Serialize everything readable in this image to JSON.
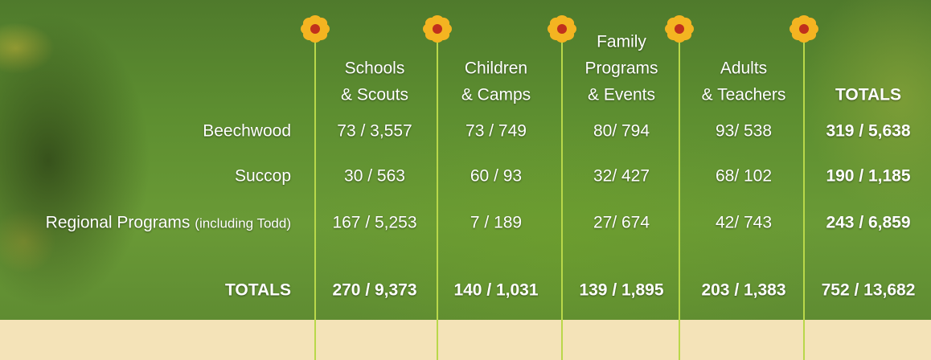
{
  "table": {
    "columns": [
      [
        "Schools",
        "& Scouts"
      ],
      [
        "Children",
        "& Camps"
      ],
      [
        "Family",
        "Programs",
        "& Events"
      ],
      [
        "Adults",
        "& Teachers"
      ],
      [
        "TOTALS"
      ]
    ],
    "rows": [
      {
        "label": "Beechwood",
        "cells": [
          "73 / 3,557",
          "73 / 749",
          "80/ 794",
          "93/ 538",
          "319 / 5,638"
        ]
      },
      {
        "label": "Succop",
        "cells": [
          "30 / 563",
          "60 / 93",
          "32/ 427",
          "68/ 102",
          "190 / 1,185"
        ]
      },
      {
        "label": "Regional Programs",
        "note": "(including Todd)",
        "cells": [
          "167 / 5,253",
          "7 / 189",
          "27/ 674",
          "42/ 743",
          "243 / 6,859"
        ]
      }
    ],
    "totals": {
      "label": "TOTALS",
      "cells": [
        "270 / 9,373",
        "140 / 1,031",
        "139 / 1,895",
        "203 / 1,383",
        "752 / 13,682"
      ]
    }
  }
}
